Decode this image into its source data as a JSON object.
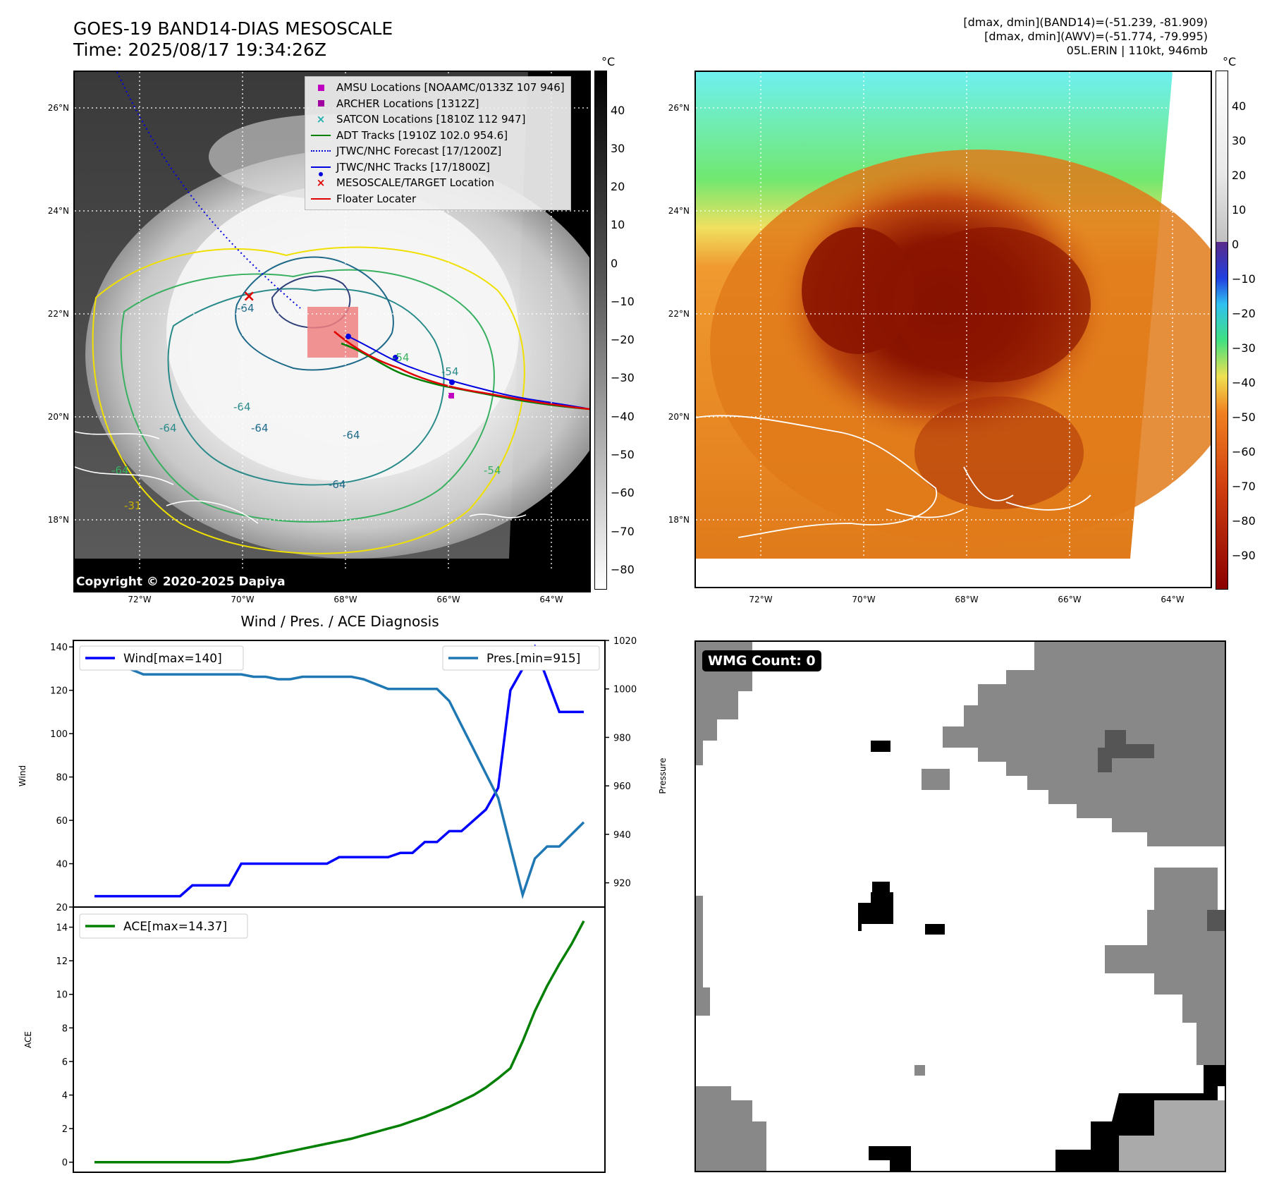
{
  "header": {
    "title_line1": "GOES-19 BAND14-DIAS MESOSCALE",
    "title_line2": "Time: 2025/08/17 19:34:26Z",
    "stats_line1": "[dmax, dmin](BAND14)=(-51.239, -81.909)",
    "stats_line2": "[dmax, dmin](AWV)=(-51.774, -79.995)",
    "stats_line3": "05L.ERIN | 110kt, 946mb"
  },
  "map_axes": {
    "lat_ticks": [
      "26°N",
      "24°N",
      "22°N",
      "20°N",
      "18°N"
    ],
    "lon_ticks": [
      "72°W",
      "70°W",
      "68°W",
      "66°W",
      "64°W"
    ]
  },
  "colorbar_left": {
    "unit": "°C",
    "ticks": [
      "40",
      "30",
      "20",
      "10",
      "0",
      "−10",
      "−20",
      "−30",
      "−40",
      "−50",
      "−60",
      "−70",
      "−80"
    ]
  },
  "colorbar_right": {
    "unit": "°C",
    "ticks": [
      "40",
      "30",
      "20",
      "10",
      "0",
      "−10",
      "−20",
      "−30",
      "−40",
      "−50",
      "−60",
      "−70",
      "−80",
      "−90"
    ]
  },
  "legend": [
    {
      "label": "AMSU Locations [NOAAMC/0133Z 107 946]",
      "symbol": "square",
      "color": "#c000c0"
    },
    {
      "label": "ARCHER Locations [1312Z]",
      "symbol": "square",
      "color": "#a000a0"
    },
    {
      "label": "SATCON Locations [1810Z 112 947]",
      "symbol": "x",
      "color": "#20b0b0"
    },
    {
      "label": "ADT Tracks [1910Z 102.0 954.6]",
      "symbol": "line",
      "color": "#008000"
    },
    {
      "label": "JTWC/NHC Forecast [17/1200Z]",
      "symbol": "dotted",
      "color": "#0000e0"
    },
    {
      "label": "JTWC/NHC Tracks [17/1800Z]",
      "symbol": "dotline",
      "color": "#0000e0"
    },
    {
      "label": "MESOSCALE/TARGET Location",
      "symbol": "x",
      "color": "#e00000"
    },
    {
      "label": "Floater Locater",
      "symbol": "line",
      "color": "#e00000"
    }
  ],
  "contour_labels": [
    "-64",
    "-64",
    "-64",
    "-64",
    "-64",
    "-64",
    "-54",
    "-54",
    "-54",
    "-64",
    "-31"
  ],
  "copyright": "Copyright © 2020-2025 Dapiya",
  "wmg_badge": "WMG Count: 0",
  "chart_data": [
    {
      "type": "line",
      "title": "Wind / Pres. / ACE Diagnosis",
      "ylabel": "Wind",
      "ylabel_right": "Pressure",
      "ylim": [
        20,
        143
      ],
      "ylim_right": [
        910,
        1020
      ],
      "yticks": [
        20,
        40,
        60,
        80,
        100,
        120,
        140
      ],
      "yticks_right": [
        920,
        940,
        960,
        980,
        1000,
        1020
      ],
      "series": [
        {
          "name": "Wind[max=140]",
          "color": "#0000ff",
          "values": [
            25,
            25,
            25,
            25,
            25,
            25,
            25,
            25,
            30,
            30,
            30,
            30,
            40,
            40,
            40,
            40,
            40,
            40,
            40,
            40,
            43,
            43,
            43,
            43,
            43,
            45,
            45,
            50,
            50,
            55,
            55,
            60,
            65,
            75,
            120,
            130,
            140,
            125,
            110,
            110,
            110
          ]
        },
        {
          "name": "Pres.[min=915]",
          "color": "#1f77b4",
          "values": [
            1015,
            1015,
            1010,
            1008,
            1006,
            1006,
            1006,
            1006,
            1006,
            1006,
            1006,
            1006,
            1006,
            1005,
            1005,
            1004,
            1004,
            1005,
            1005,
            1005,
            1005,
            1005,
            1004,
            1002,
            1000,
            1000,
            1000,
            1000,
            1000,
            995,
            985,
            975,
            965,
            955,
            935,
            915,
            930,
            935,
            935,
            940,
            945
          ]
        }
      ],
      "legend_placement": [
        "upper-left",
        "upper-right"
      ]
    },
    {
      "type": "line",
      "ylabel": "ACE",
      "ylim": [
        -0.6,
        15.2
      ],
      "yticks": [
        0,
        2,
        4,
        6,
        8,
        10,
        12,
        14
      ],
      "series": [
        {
          "name": "ACE[max=14.37]",
          "color": "#008000",
          "values": [
            0,
            0,
            0,
            0,
            0,
            0,
            0,
            0,
            0,
            0,
            0,
            0,
            0.1,
            0.2,
            0.35,
            0.5,
            0.65,
            0.8,
            0.95,
            1.1,
            1.25,
            1.4,
            1.6,
            1.8,
            2.0,
            2.2,
            2.45,
            2.7,
            3.0,
            3.3,
            3.65,
            4.0,
            4.45,
            5.0,
            5.6,
            7.2,
            9.0,
            10.5,
            11.8,
            13.0,
            14.37
          ]
        }
      ],
      "legend_placement": "upper-left"
    }
  ],
  "colors": {
    "ir_orange": "#e07a1a",
    "ir_dark": "#8b1500",
    "ocean_cyan": "#6ff0f0",
    "land_green": "#70e870",
    "wmg_gray": "#888888",
    "wmg_dark": "#555555",
    "wmg_light": "#aaaaaa"
  }
}
